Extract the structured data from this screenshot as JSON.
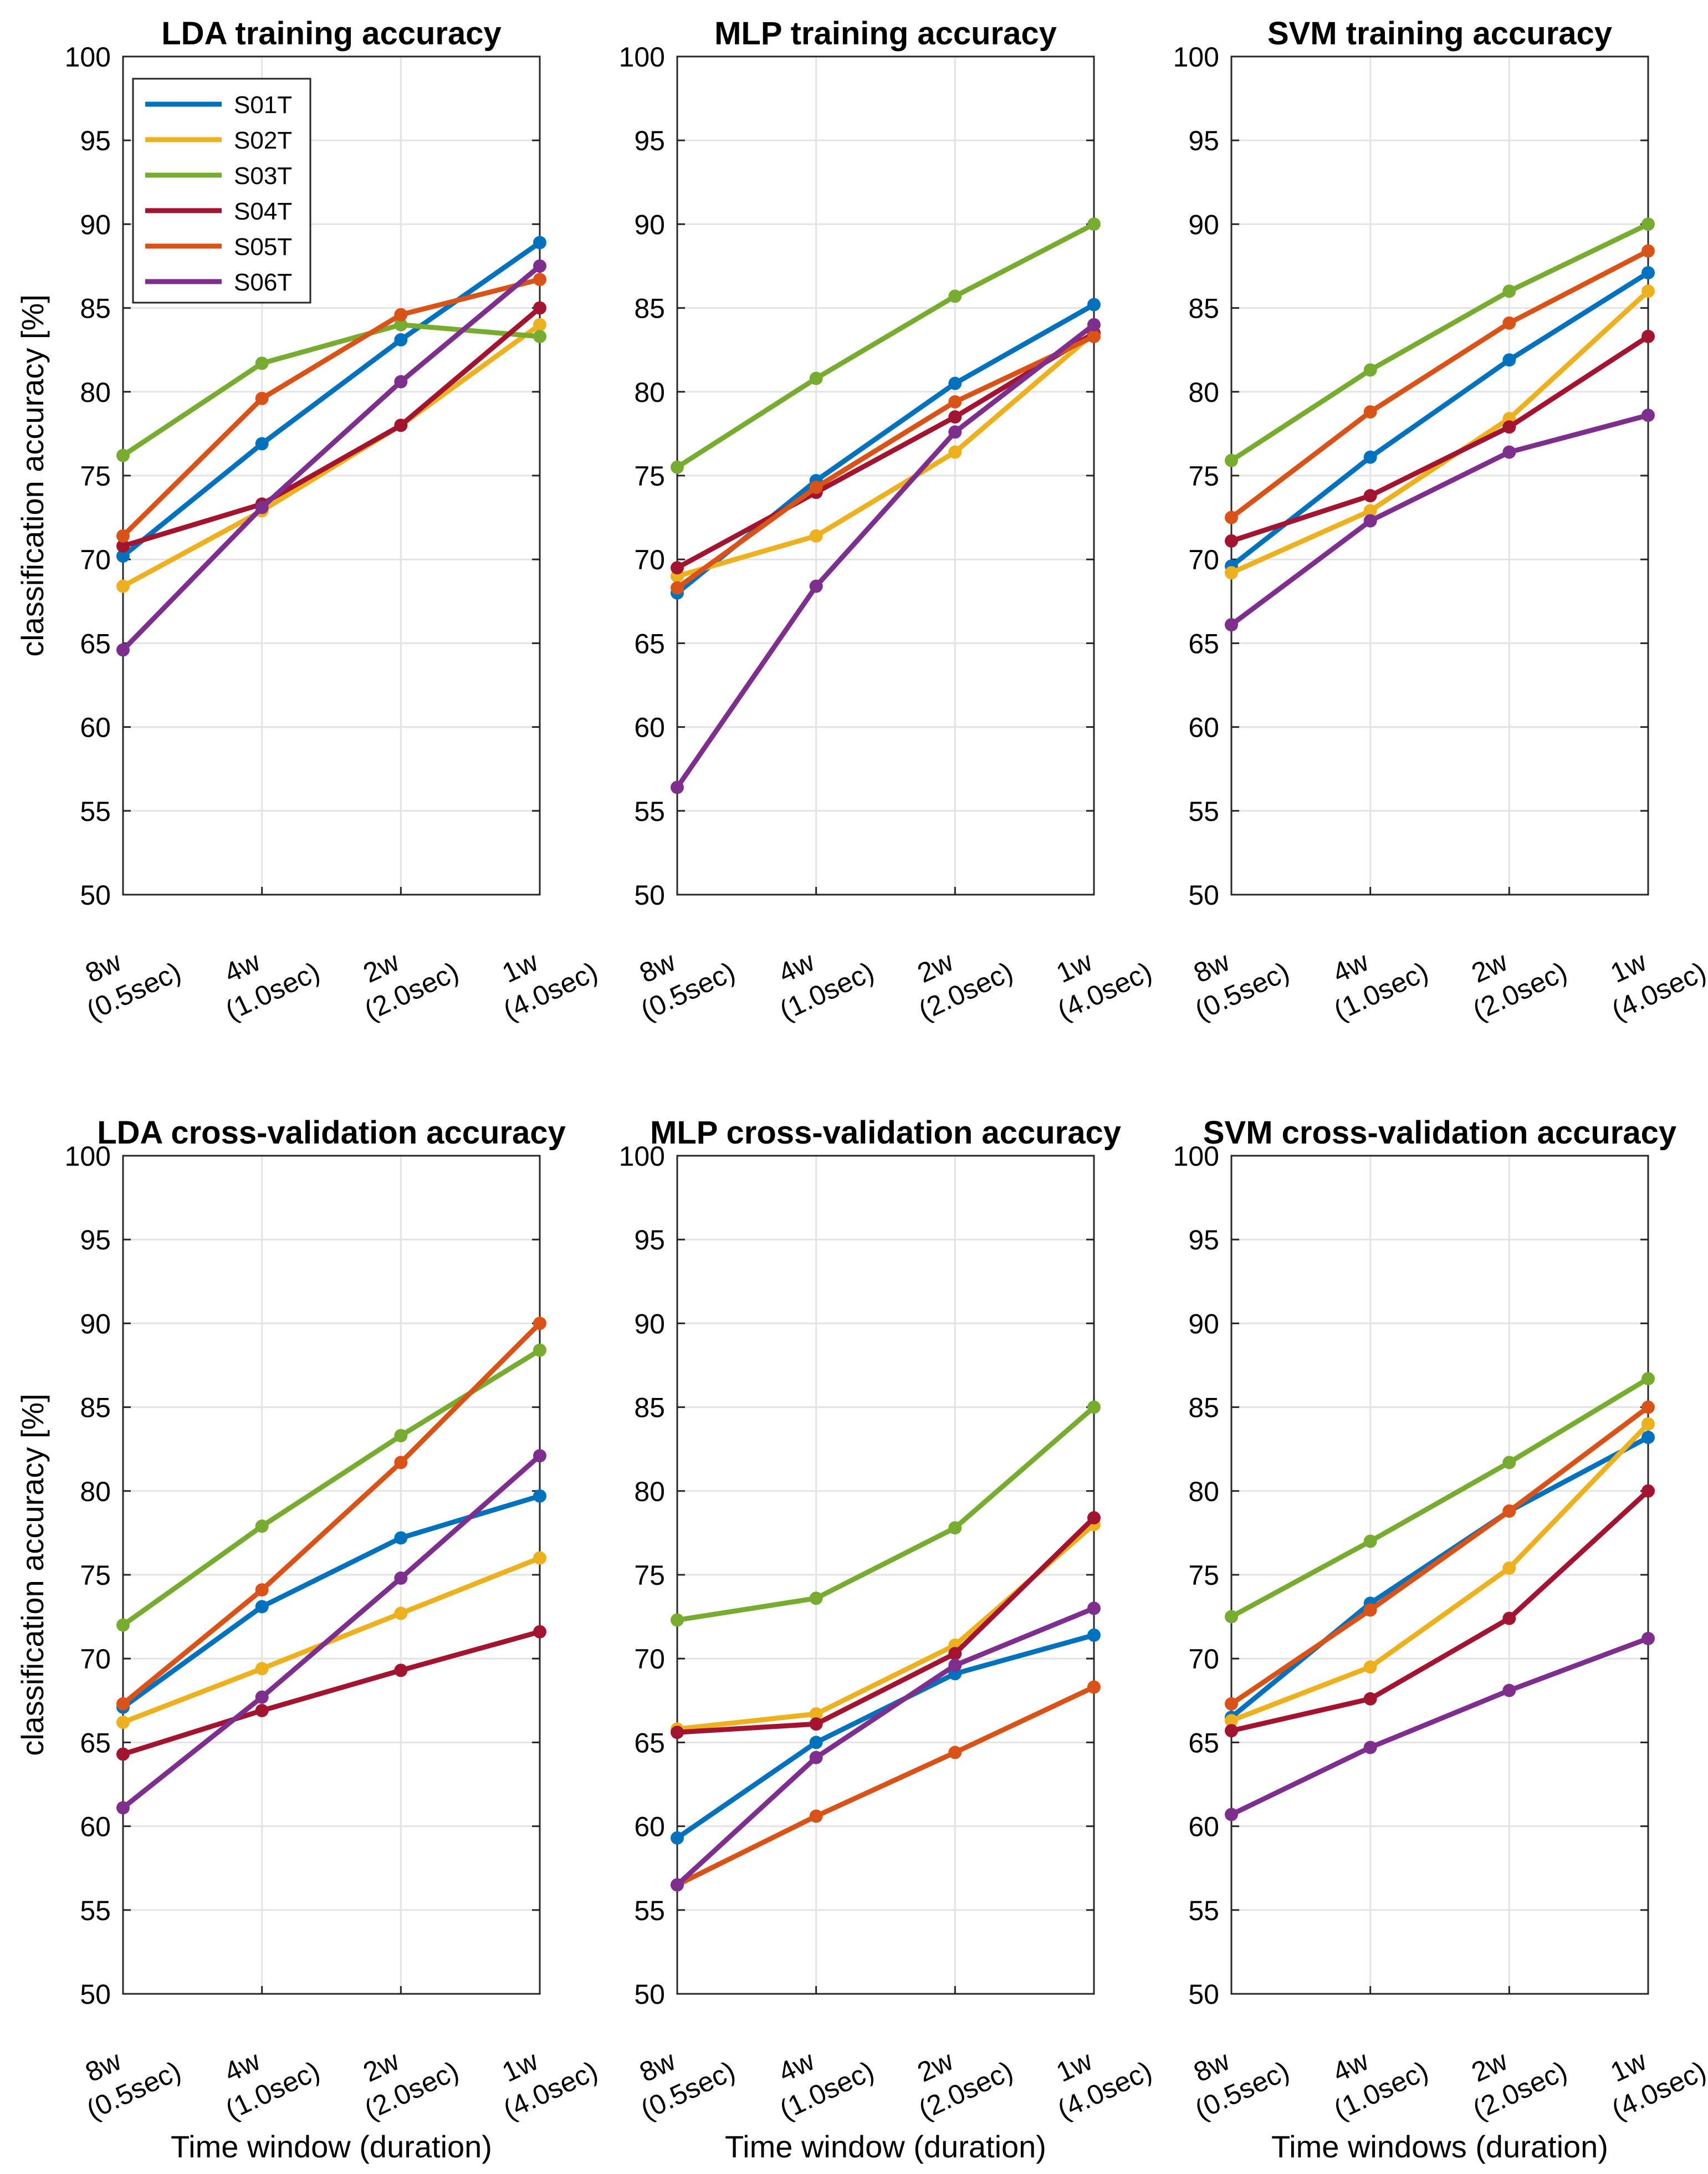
{
  "chart_data": [
    {
      "type": "line",
      "title": "LDA training accuracy",
      "ylabel": "classification accuracy [%]",
      "xlabel": "",
      "ylim": [
        50,
        100
      ],
      "yticks": [
        "50",
        "55",
        "60",
        "65",
        "70",
        "75",
        "80",
        "85",
        "90",
        "95",
        "100"
      ],
      "categories": [
        [
          "8w",
          "(0.5sec)"
        ],
        [
          "4w",
          "(1.0sec)"
        ],
        [
          "2w",
          "(2.0sec)"
        ],
        [
          "1w",
          "(4.0sec)"
        ]
      ],
      "grid": true,
      "legend": "top-left",
      "series": [
        {
          "name": "S01T",
          "color": "#0072BD",
          "values": [
            70.2,
            76.9,
            83.1,
            88.9
          ]
        },
        {
          "name": "S02T",
          "color": "#EDB120",
          "values": [
            68.4,
            72.9,
            78.0,
            84.0
          ]
        },
        {
          "name": "S03T",
          "color": "#77AC30",
          "values": [
            76.2,
            81.7,
            84.0,
            83.3
          ]
        },
        {
          "name": "S04T",
          "color": "#A2142F",
          "values": [
            70.8,
            73.3,
            78.0,
            85.0
          ]
        },
        {
          "name": "S05T",
          "color": "#D95319",
          "values": [
            71.4,
            79.6,
            84.6,
            86.7
          ]
        },
        {
          "name": "S06T",
          "color": "#7E2F8E",
          "values": [
            64.6,
            73.1,
            80.6,
            87.5
          ]
        }
      ]
    },
    {
      "type": "line",
      "title": "MLP training accuracy",
      "ylabel": "",
      "xlabel": "",
      "ylim": [
        50,
        100
      ],
      "yticks": [
        "50",
        "55",
        "60",
        "65",
        "70",
        "75",
        "80",
        "85",
        "90",
        "95",
        "100"
      ],
      "categories": [
        [
          "8w",
          "(0.5sec)"
        ],
        [
          "4w",
          "(1.0sec)"
        ],
        [
          "2w",
          "(2.0sec)"
        ],
        [
          "1w",
          "(4.0sec)"
        ]
      ],
      "grid": true,
      "series": [
        {
          "name": "S01T",
          "color": "#0072BD",
          "values": [
            68.0,
            74.7,
            80.5,
            85.2
          ]
        },
        {
          "name": "S02T",
          "color": "#EDB120",
          "values": [
            69.0,
            71.4,
            76.4,
            83.5
          ]
        },
        {
          "name": "S03T",
          "color": "#77AC30",
          "values": [
            75.5,
            80.8,
            85.7,
            90.0
          ]
        },
        {
          "name": "S04T",
          "color": "#A2142F",
          "values": [
            69.5,
            74.0,
            78.5,
            83.5
          ]
        },
        {
          "name": "S05T",
          "color": "#D95319",
          "values": [
            68.3,
            74.3,
            79.4,
            83.3
          ]
        },
        {
          "name": "S06T",
          "color": "#7E2F8E",
          "values": [
            56.4,
            68.4,
            77.6,
            84.0
          ]
        }
      ]
    },
    {
      "type": "line",
      "title": "SVM  training accuracy",
      "ylabel": "",
      "xlabel": "",
      "ylim": [
        50,
        100
      ],
      "yticks": [
        "50",
        "55",
        "60",
        "65",
        "70",
        "75",
        "80",
        "85",
        "90",
        "95",
        "100"
      ],
      "categories": [
        [
          "8w",
          "(0.5sec)"
        ],
        [
          "4w",
          "(1.0sec)"
        ],
        [
          "2w",
          "(2.0sec)"
        ],
        [
          "1w",
          "(4.0sec)"
        ]
      ],
      "grid": true,
      "series": [
        {
          "name": "S01T",
          "color": "#0072BD",
          "values": [
            69.6,
            76.1,
            81.9,
            87.1
          ]
        },
        {
          "name": "S02T",
          "color": "#EDB120",
          "values": [
            69.2,
            72.9,
            78.4,
            86.0
          ]
        },
        {
          "name": "S03T",
          "color": "#77AC30",
          "values": [
            75.9,
            81.3,
            86.0,
            90.0
          ]
        },
        {
          "name": "S04T",
          "color": "#A2142F",
          "values": [
            71.1,
            73.8,
            77.9,
            83.3
          ]
        },
        {
          "name": "S05T",
          "color": "#D95319",
          "values": [
            72.5,
            78.8,
            84.1,
            88.4
          ]
        },
        {
          "name": "S06T",
          "color": "#7E2F8E",
          "values": [
            66.1,
            72.3,
            76.4,
            78.6
          ]
        }
      ]
    },
    {
      "type": "line",
      "title": "LDA cross-validation accuracy",
      "ylabel": "classification accuracy [%]",
      "xlabel": "Time window (duration)",
      "ylim": [
        50,
        100
      ],
      "yticks": [
        "50",
        "55",
        "60",
        "65",
        "70",
        "75",
        "80",
        "85",
        "90",
        "95",
        "100"
      ],
      "categories": [
        [
          "8w",
          "(0.5sec)"
        ],
        [
          "4w",
          "(1.0sec)"
        ],
        [
          "2w",
          "(2.0sec)"
        ],
        [
          "1w",
          "(4.0sec)"
        ]
      ],
      "grid": true,
      "series": [
        {
          "name": "S01T",
          "color": "#0072BD",
          "values": [
            67.1,
            73.1,
            77.2,
            79.7
          ]
        },
        {
          "name": "S02T",
          "color": "#EDB120",
          "values": [
            66.2,
            69.4,
            72.7,
            76.0
          ]
        },
        {
          "name": "S03T",
          "color": "#77AC30",
          "values": [
            72.0,
            77.9,
            83.3,
            88.4
          ]
        },
        {
          "name": "S04T",
          "color": "#A2142F",
          "values": [
            64.3,
            66.9,
            69.3,
            71.6
          ]
        },
        {
          "name": "S05T",
          "color": "#D95319",
          "values": [
            67.3,
            74.1,
            81.7,
            90.0
          ]
        },
        {
          "name": "S06T",
          "color": "#7E2F8E",
          "values": [
            61.1,
            67.7,
            74.8,
            82.1
          ]
        }
      ]
    },
    {
      "type": "line",
      "title": "MLP cross-validation accuracy",
      "ylabel": "",
      "xlabel": "Time window (duration)",
      "ylim": [
        50,
        100
      ],
      "yticks": [
        "50",
        "55",
        "60",
        "65",
        "70",
        "75",
        "80",
        "85",
        "90",
        "95",
        "100"
      ],
      "categories": [
        [
          "8w",
          "(0.5sec)"
        ],
        [
          "4w",
          "(1.0sec)"
        ],
        [
          "2w",
          "(2.0sec)"
        ],
        [
          "1w",
          "(4.0sec)"
        ]
      ],
      "grid": true,
      "series": [
        {
          "name": "S01T",
          "color": "#0072BD",
          "values": [
            59.3,
            65.0,
            69.1,
            71.4
          ]
        },
        {
          "name": "S02T",
          "color": "#EDB120",
          "values": [
            65.8,
            66.7,
            70.8,
            78.0
          ]
        },
        {
          "name": "S03T",
          "color": "#77AC30",
          "values": [
            72.3,
            73.6,
            77.8,
            85.0
          ]
        },
        {
          "name": "S04T",
          "color": "#A2142F",
          "values": [
            65.6,
            66.1,
            70.3,
            78.4
          ]
        },
        {
          "name": "S05T",
          "color": "#D95319",
          "values": [
            56.5,
            60.6,
            64.4,
            68.3
          ]
        },
        {
          "name": "S06T",
          "color": "#7E2F8E",
          "values": [
            56.5,
            64.1,
            69.6,
            73.0
          ]
        }
      ]
    },
    {
      "type": "line",
      "title": "SVM cross-validation accuracy",
      "ylabel": "",
      "xlabel": "Time windows (duration)",
      "ylim": [
        50,
        100
      ],
      "yticks": [
        "50",
        "55",
        "60",
        "65",
        "70",
        "75",
        "80",
        "85",
        "90",
        "95",
        "100"
      ],
      "categories": [
        [
          "8w",
          "(0.5sec)"
        ],
        [
          "4w",
          "(1.0sec)"
        ],
        [
          "2w",
          "(2.0sec)"
        ],
        [
          "1w",
          "(4.0sec)"
        ]
      ],
      "grid": true,
      "series": [
        {
          "name": "S01T",
          "color": "#0072BD",
          "values": [
            66.5,
            73.3,
            78.8,
            83.2
          ]
        },
        {
          "name": "S02T",
          "color": "#EDB120",
          "values": [
            66.3,
            69.5,
            75.4,
            84.0
          ]
        },
        {
          "name": "S03T",
          "color": "#77AC30",
          "values": [
            72.5,
            77.0,
            81.7,
            86.7
          ]
        },
        {
          "name": "S04T",
          "color": "#A2142F",
          "values": [
            65.7,
            67.6,
            72.4,
            80.0
          ]
        },
        {
          "name": "S05T",
          "color": "#D95319",
          "values": [
            67.3,
            72.9,
            78.8,
            85.0
          ]
        },
        {
          "name": "S06T",
          "color": "#7E2F8E",
          "values": [
            60.7,
            64.7,
            68.1,
            71.2
          ]
        }
      ]
    }
  ]
}
